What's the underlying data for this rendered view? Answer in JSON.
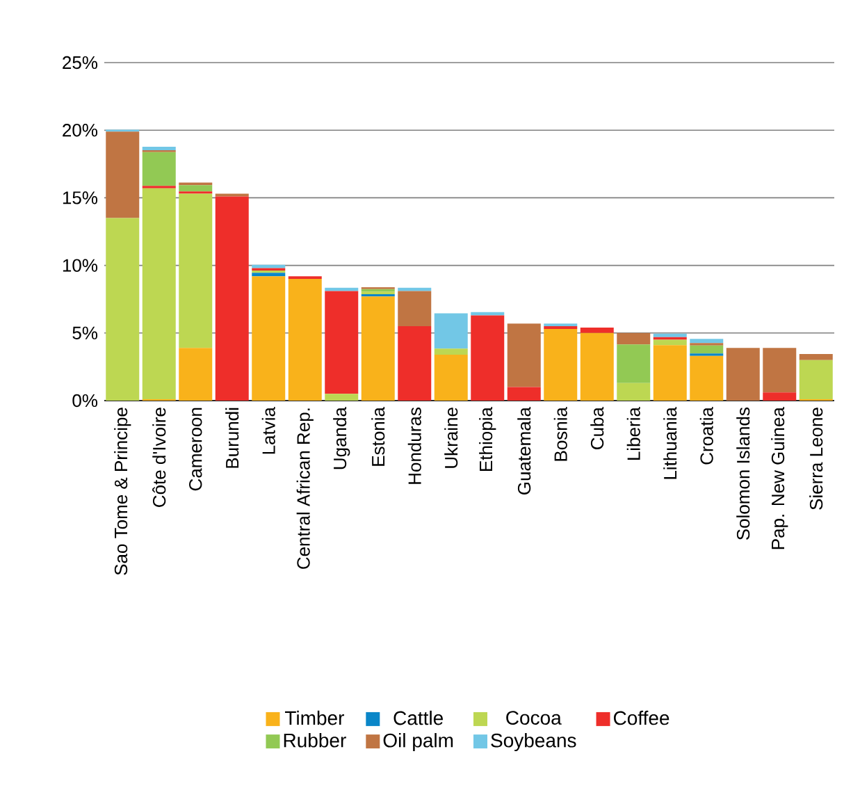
{
  "chart_data": {
    "type": "bar",
    "stacked": true,
    "categories": [
      "Sao Tome & Principe",
      "Côte d'Ivoire",
      "Cameroon",
      "Burundi",
      "Latvia",
      "Central African Rep.",
      "Uganda",
      "Estonia",
      "Honduras",
      "Ukraine",
      "Ethiopia",
      "Guatemala",
      "Bosnia",
      "Cuba",
      "Liberia",
      "Lithuania",
      "Croatia",
      "Solomon Islands",
      "Pap. New Guinea",
      "Sierra Leone"
    ],
    "series": [
      {
        "name": "Timber",
        "color": "#f9b21b",
        "values": [
          null,
          0.1,
          3.9,
          null,
          9.2,
          9.0,
          null,
          7.7,
          null,
          3.4,
          null,
          null,
          5.3,
          5.0,
          null,
          4.1,
          3.3,
          null,
          null,
          0.1
        ]
      },
      {
        "name": "Cattle",
        "color": "#0a86c8",
        "values": [
          null,
          null,
          null,
          null,
          0.25,
          null,
          null,
          0.17,
          null,
          null,
          null,
          null,
          null,
          null,
          null,
          null,
          0.18,
          null,
          null,
          null
        ]
      },
      {
        "name": "Cocoa",
        "color": "#bdd752",
        "values": [
          13.5,
          15.6,
          11.4,
          null,
          0.17,
          null,
          0.5,
          0.2,
          null,
          0.45,
          null,
          null,
          null,
          null,
          1.3,
          0.4,
          null,
          null,
          null,
          2.9
        ]
      },
      {
        "name": "Coffee",
        "color": "#ee2e2a",
        "values": [
          null,
          0.18,
          0.17,
          15.1,
          0.18,
          0.2,
          7.6,
          null,
          5.5,
          null,
          6.3,
          1.0,
          0.2,
          0.4,
          null,
          0.2,
          null,
          null,
          0.6,
          null
        ]
      },
      {
        "name": "Rubber",
        "color": "#92c954",
        "values": [
          null,
          2.5,
          0.46,
          null,
          null,
          null,
          null,
          0.18,
          null,
          null,
          null,
          null,
          null,
          null,
          2.85,
          null,
          0.6,
          null,
          null,
          null
        ]
      },
      {
        "name": "Oil palm",
        "color": "#c07543",
        "values": [
          6.4,
          0.14,
          0.2,
          0.2,
          null,
          null,
          null,
          0.14,
          2.6,
          null,
          null,
          4.7,
          null,
          null,
          0.85,
          null,
          0.18,
          3.9,
          3.3,
          0.45
        ]
      },
      {
        "name": "Soybeans",
        "color": "#72c7e6",
        "values": [
          0.14,
          0.25,
          null,
          null,
          0.25,
          null,
          0.25,
          null,
          0.25,
          2.6,
          0.24,
          null,
          0.2,
          null,
          null,
          0.25,
          0.3,
          null,
          null,
          null
        ]
      }
    ],
    "ylim": [
      0,
      25
    ],
    "yticks": [
      {
        "value": 0,
        "label": "0%"
      },
      {
        "value": 5,
        "label": "5%"
      },
      {
        "value": 10,
        "label": "10%"
      },
      {
        "value": 15,
        "label": "15%"
      },
      {
        "value": 20,
        "label": "20%"
      },
      {
        "value": 25,
        "label": "25%"
      }
    ],
    "grid": "y",
    "legend": "bottom"
  }
}
